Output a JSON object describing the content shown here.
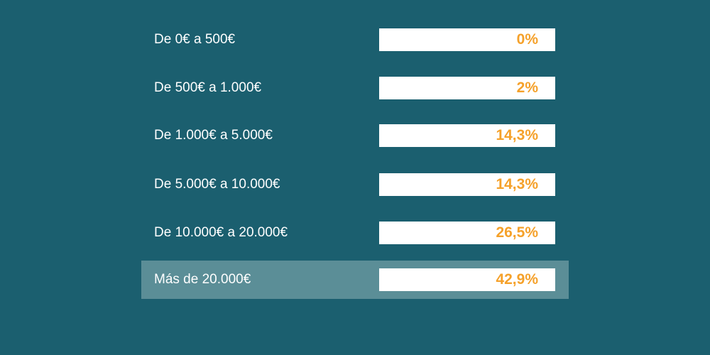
{
  "table": {
    "rows": [
      [
        "De 0€ a 500€",
        "0%"
      ],
      [
        "De 500€ a 1.000€",
        "2%"
      ],
      [
        "De 1.000€ a 5.000€",
        "14,3%"
      ],
      [
        "De 5.000€ a 10.000€",
        "14,3%"
      ],
      [
        "De 10.000€ a 20.000€",
        "26,5%"
      ],
      [
        "Más de 20.000€",
        "42,9%"
      ]
    ]
  }
}
